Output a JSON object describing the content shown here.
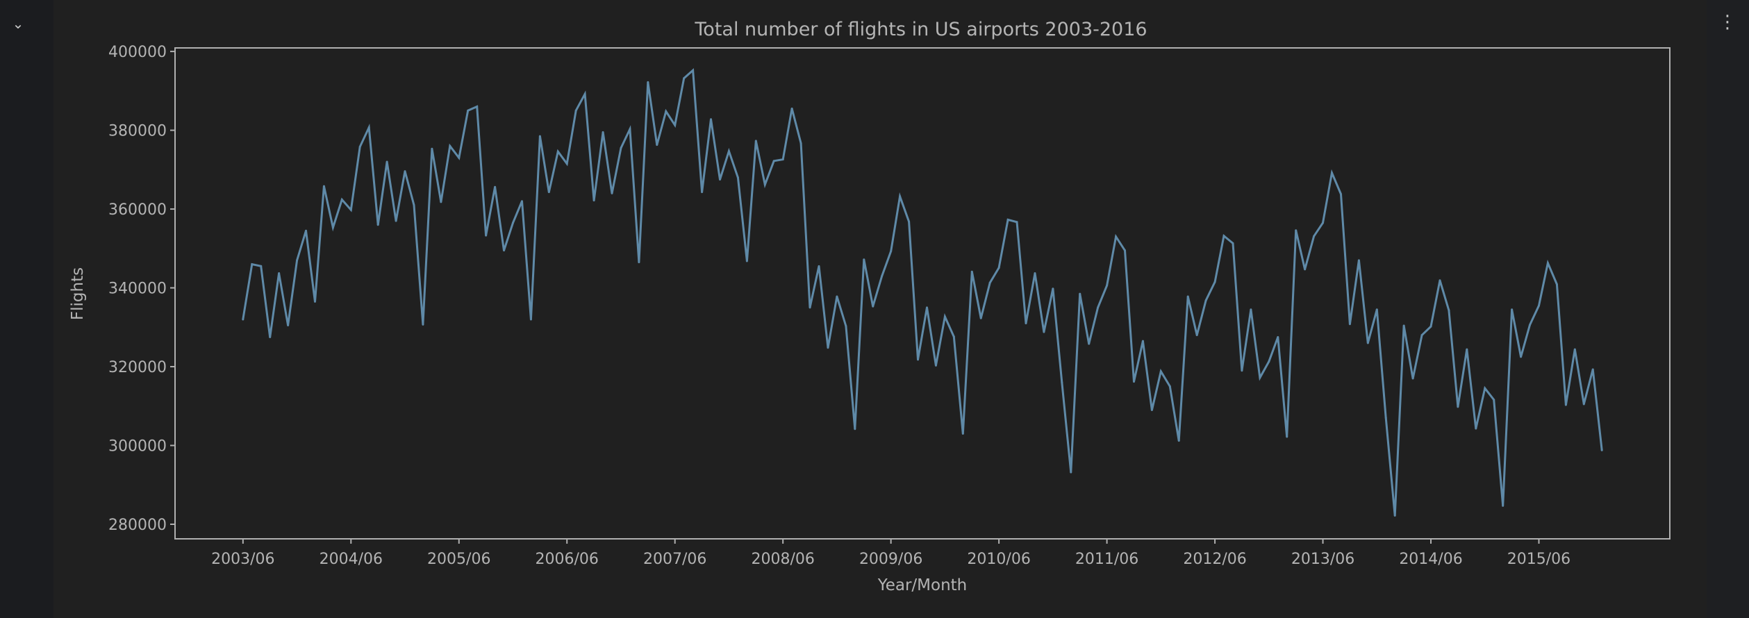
{
  "ui": {
    "collapse_icon": "chevron-down-icon",
    "more_icon": "vertical-ellipsis-icon",
    "collapse_glyph": "⌄",
    "more_glyph": "⋮"
  },
  "colors": {
    "line": "#5f8aa8",
    "axes": "#b0b0b0",
    "text": "#b4b4b4",
    "background": "#202020"
  },
  "chart_data": {
    "type": "line",
    "title": "Total number of flights in US airports 2003-2016",
    "xlabel": "Year/Month",
    "ylabel": "Flights",
    "ylim": [
      276300,
      400900
    ],
    "grid": false,
    "yticks": [
      280000,
      300000,
      320000,
      340000,
      360000,
      380000,
      400000
    ],
    "xticks": [
      "2003/06",
      "2004/06",
      "2005/06",
      "2006/06",
      "2007/06",
      "2008/06",
      "2009/06",
      "2010/06",
      "2011/06",
      "2012/06",
      "2013/06",
      "2014/06",
      "2015/06"
    ],
    "x": [
      "2003/06",
      "2003/07",
      "2003/08",
      "2003/09",
      "2003/10",
      "2003/11",
      "2003/12",
      "2004/01",
      "2004/02",
      "2004/03",
      "2004/04",
      "2004/05",
      "2004/06",
      "2004/07",
      "2004/08",
      "2004/09",
      "2004/10",
      "2004/11",
      "2004/12",
      "2005/01",
      "2005/02",
      "2005/03",
      "2005/04",
      "2005/05",
      "2005/06",
      "2005/07",
      "2005/08",
      "2005/09",
      "2005/10",
      "2005/11",
      "2005/12",
      "2006/01",
      "2006/02",
      "2006/03",
      "2006/04",
      "2006/05",
      "2006/06",
      "2006/07",
      "2006/08",
      "2006/09",
      "2006/10",
      "2006/11",
      "2006/12",
      "2007/01",
      "2007/02",
      "2007/03",
      "2007/04",
      "2007/05",
      "2007/06",
      "2007/07",
      "2007/08",
      "2007/09",
      "2007/10",
      "2007/11",
      "2007/12",
      "2008/01",
      "2008/02",
      "2008/03",
      "2008/04",
      "2008/05",
      "2008/06",
      "2008/07",
      "2008/08",
      "2008/09",
      "2008/10",
      "2008/11",
      "2008/12",
      "2009/01",
      "2009/02",
      "2009/03",
      "2009/04",
      "2009/05",
      "2009/06",
      "2009/07",
      "2009/08",
      "2009/09",
      "2009/10",
      "2009/11",
      "2009/12",
      "2010/01",
      "2010/02",
      "2010/03",
      "2010/04",
      "2010/05",
      "2010/06",
      "2010/07",
      "2010/08",
      "2010/09",
      "2010/10",
      "2010/11",
      "2010/12",
      "2011/01",
      "2011/02",
      "2011/03",
      "2011/04",
      "2011/05",
      "2011/06",
      "2011/07",
      "2011/08",
      "2011/09",
      "2011/10",
      "2011/11",
      "2011/12",
      "2012/01",
      "2012/02",
      "2012/03",
      "2012/04",
      "2012/05",
      "2012/06",
      "2012/07",
      "2012/08",
      "2012/09",
      "2012/10",
      "2012/11",
      "2012/12",
      "2013/01",
      "2013/02",
      "2013/03",
      "2013/04",
      "2013/05",
      "2013/06",
      "2013/07",
      "2013/08",
      "2013/09",
      "2013/10",
      "2013/11",
      "2013/12",
      "2014/01",
      "2014/02",
      "2014/03",
      "2014/04",
      "2014/05",
      "2014/06",
      "2014/07",
      "2014/08",
      "2014/09",
      "2014/10",
      "2014/11",
      "2014/12",
      "2015/01",
      "2015/02",
      "2015/03",
      "2015/04",
      "2015/05",
      "2015/06",
      "2015/07",
      "2015/08",
      "2015/09",
      "2015/10",
      "2015/11",
      "2015/12",
      "2016/01"
    ],
    "series": [
      {
        "values": [
          332000,
          346000,
          345500,
          327500,
          343700,
          330500,
          347000,
          354500,
          336500,
          365800,
          355300,
          362400,
          359800,
          375800,
          380700,
          356000,
          372000,
          357000,
          369600,
          361000,
          330700,
          375300,
          361800,
          376000,
          373000,
          385000,
          386000,
          353300,
          365600,
          349500,
          356500,
          362000,
          332000,
          378500,
          364300,
          374600,
          371500,
          385000,
          389200,
          362200,
          379500,
          364000,
          375500,
          380300,
          346500,
          392200,
          376300,
          384800,
          381300,
          393200,
          395200,
          364300,
          382800,
          367500,
          374700,
          368000,
          346800,
          377300,
          366200,
          372200,
          372600,
          385500,
          376700,
          335000,
          345500,
          324800,
          337800,
          330300,
          304200,
          347200,
          335300,
          343000,
          349300,
          363200,
          356800,
          321800,
          335000,
          320300,
          332700,
          327600,
          303000,
          344100,
          332300,
          341300,
          345100,
          357300,
          356700,
          331000,
          343700,
          328800,
          339800,
          316000,
          293200,
          338500,
          325800,
          335000,
          340600,
          353000,
          349500,
          316200,
          326500,
          309000,
          318800,
          315000,
          301200,
          337800,
          328000,
          336800,
          341500,
          353200,
          351300,
          319000,
          334500,
          317200,
          321300,
          327500,
          302200,
          354600,
          344700,
          353100,
          356500,
          369200,
          363800,
          330800,
          347000,
          326000,
          334500,
          307000,
          282200,
          330400,
          317000,
          328000,
          330200,
          341900,
          334300,
          309800,
          324400,
          304300,
          314500,
          311600,
          284700,
          334500,
          322500,
          330600,
          335500,
          346300,
          340900,
          310300,
          324400,
          310500,
          319300,
          298800
        ]
      }
    ]
  }
}
